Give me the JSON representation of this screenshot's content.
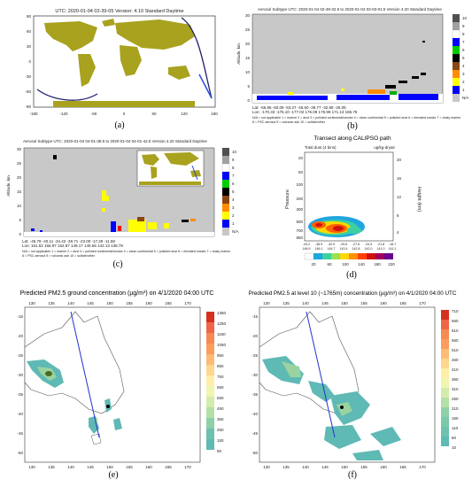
{
  "panels": {
    "a": {
      "caption": "(a)",
      "title": "UTC: 2020-01-04  02-39-05   Version: 4.10  Standard  Daytime",
      "x_ticks": [
        "-180",
        "-120",
        "-60",
        "0",
        "60",
        "120",
        "180"
      ],
      "y_ticks": [
        "90",
        "60",
        "30",
        "0",
        "-30",
        "-60",
        "-90"
      ]
    },
    "b": {
      "caption": "(b)",
      "title": "Aerosol Subtype   UTC: 2020-01-04  02-49-32.9  to  2020-01-04  03-03-01.5   Version 4.20  Standard Daytime",
      "ylabel": "Altitude, km",
      "y_ticks": [
        "30",
        "25",
        "20",
        "15",
        "10",
        "5",
        "0"
      ],
      "lat_row": "Lat:  -66.86      -60.09      -53.27      -46.50      -39.77      -32.88      -26.05",
      "lon_row": "Lon: -170.33     -175.10     -177.02     176.09      175.99      171.13      165.78",
      "legend_line": "N/A = not applicable   1 = marine   2 = dust   3 = polluted continental/smoke   4 = clean continental   5 = polluted dust   6 = elevated smoke   7 = dusty marine",
      "legend_line2": "8 = PSC aerosol   9 = volcanic ash   10 = sulfate/other",
      "colorbar_labels": [
        "10",
        "9",
        "8",
        "7",
        "6",
        "5",
        "4",
        "3",
        "2",
        "1",
        "N/A"
      ]
    },
    "c": {
      "caption": "(c)",
      "title": "Aerosol Subtype   UTC: 2020-01-04  04-01-38.5  to  2020-01-04  04-01-42.5   Version 4.20  Standard Daytime",
      "ylabel": "Altitude, km",
      "y_ticks": [
        "30",
        "25",
        "20",
        "15",
        "10",
        "5",
        "0"
      ],
      "lat_row": "Lat:  -45.79      -40.11      -34.42      -28.71      -23.00      -17.29      -11.58",
      "lon_row": "Lon: 161.62      156.97      152.87      149.17      145.56      142.13      138.79",
      "legend_line": "N/A = not applicable   1 = marine   2 = dust   3 = polluted continental/smoke   4 = clean continental   5 = polluted dust   6 = elevated smoke   7 = dusty marine",
      "legend_line2": "8 = PSC aerosol   9 = volcanic ash   10 = sulfate/other",
      "colorbar_labels": [
        "10",
        "9",
        "8",
        "7",
        "6",
        "5",
        "4",
        "3",
        "2",
        "1",
        "N/A"
      ]
    },
    "d": {
      "caption": "(d)",
      "title": "Transect along CALIPSO path",
      "subtitle_left": "Total dust (4 bins)",
      "subtitle_right": "ug/kg-dryair",
      "ylabel_left": "Pressure",
      "ylabel_right": "Height (km)",
      "p_ticks": [
        "20",
        "50",
        "100",
        "200",
        "300",
        "500",
        "700",
        "850"
      ],
      "h_ticks": [
        "20",
        "16",
        "12",
        "8",
        "4"
      ],
      "x_ticks_top": [
        "-43.2",
        "-38.9",
        "-32.9",
        "-29.6",
        "-27.6",
        "-24.9",
        "-21.8",
        "-18.7"
      ],
      "x_ticks_bottom": [
        "148.9",
        "146.1",
        "144.7",
        "143.4",
        "142.8",
        "142.0",
        "141.0",
        "141.1"
      ],
      "colorbar_labels": [
        "20",
        "60",
        "100",
        "140",
        "180",
        "220"
      ]
    },
    "e": {
      "caption": "(e)",
      "title": "Predicted PM2.5 ground concentration (µg/m³) on 4/1/2020 04:00 UTC",
      "lon_ticks": [
        "130",
        "135",
        "140",
        "145",
        "150",
        "155",
        "160",
        "165",
        "170"
      ],
      "lat_ticks": [
        "-15",
        "-20",
        "-25",
        "-30",
        "-35",
        "-40",
        "-45",
        "-50"
      ],
      "colorbar_labels": [
        "1350",
        "1250",
        "1150",
        "1050",
        "950",
        "850",
        "750",
        "650",
        "550",
        "450",
        "350",
        "250",
        "150",
        "50"
      ]
    },
    "f": {
      "caption": "(f)",
      "title": "Predicted PM2.5 at level 10 (~1765m) concentration (µg/m³) on 4/1/2020 04:00 UTC",
      "lon_ticks": [
        "130",
        "135",
        "140",
        "145",
        "150",
        "155",
        "160",
        "165",
        "170"
      ],
      "lat_ticks": [
        "-15",
        "-20",
        "-25",
        "-30",
        "-35",
        "-40",
        "-45",
        "-50"
      ],
      "colorbar_labels": [
        "710",
        "660",
        "610",
        "560",
        "510",
        "460",
        "410",
        "360",
        "310",
        "260",
        "210",
        "160",
        "110",
        "60",
        "10"
      ]
    }
  },
  "colors": {
    "land": "#a8a21e",
    "ocean": "#ffffff",
    "curtain_bg": "#c8c8c8",
    "marine": "#0000ff",
    "dust": "#ffff00",
    "smoke": "#000000",
    "teal_low": "#5fb9b5"
  }
}
